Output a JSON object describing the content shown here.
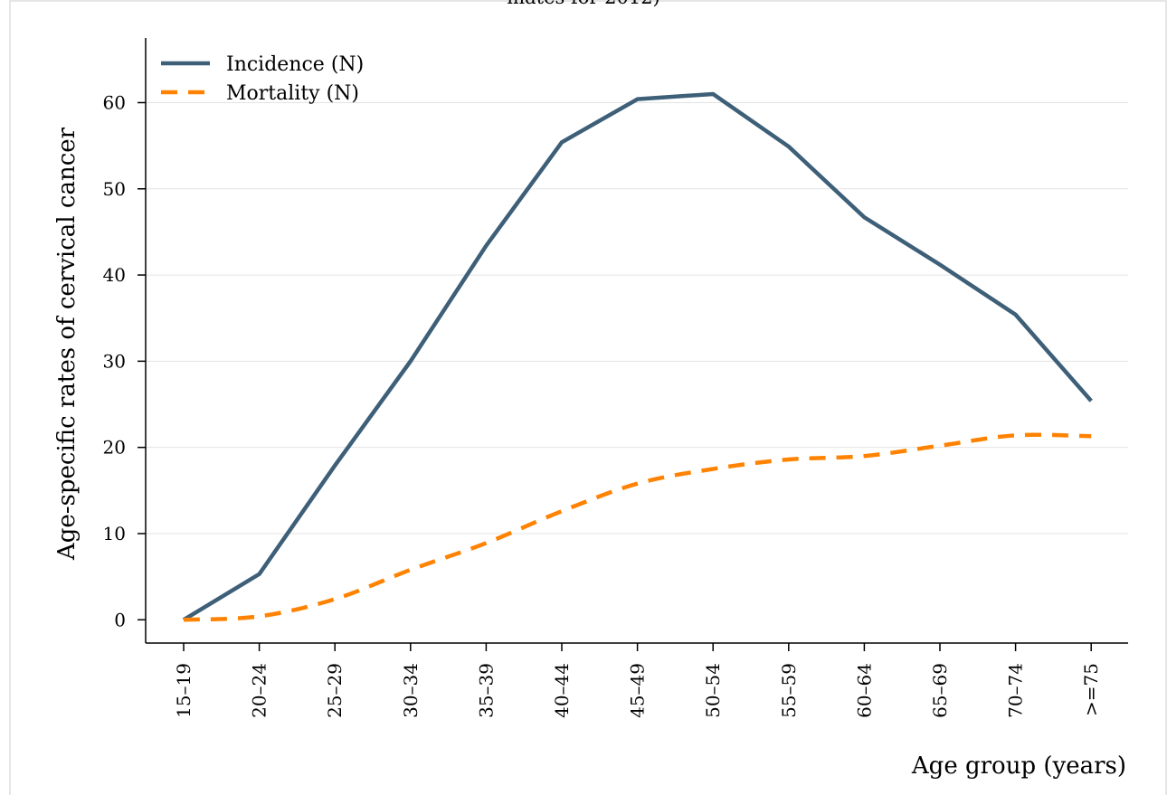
{
  "chart_data": {
    "type": "line",
    "title": "mates for 2012)",
    "xlabel": "Age group (years)",
    "ylabel": "Age-specific rates of cervical cancer",
    "categories": [
      "15–19",
      "20–24",
      "25–29",
      "30–34",
      "35–39",
      "40–44",
      "45–49",
      "50–54",
      "55–59",
      "60–64",
      "65–69",
      "70–74",
      ">=75"
    ],
    "ylim": [
      -2.7,
      67.5
    ],
    "yticks": [
      0,
      10,
      20,
      30,
      40,
      50,
      60
    ],
    "grid": true,
    "legend": "top-left",
    "series": [
      {
        "name": "Incidence (N)",
        "color": "#3e5f78",
        "style": "solid",
        "values": [
          0.0,
          5.3,
          17.9,
          30.0,
          43.4,
          55.4,
          60.4,
          61.0,
          54.9,
          46.7,
          41.2,
          35.4,
          25.4
        ]
      },
      {
        "name": "Mortality (N)",
        "color": "#ff8200",
        "style": "dashed",
        "values": [
          0.0,
          0.4,
          2.4,
          5.8,
          8.9,
          12.6,
          15.8,
          17.5,
          18.6,
          19.0,
          20.2,
          21.4,
          21.3
        ]
      }
    ]
  }
}
